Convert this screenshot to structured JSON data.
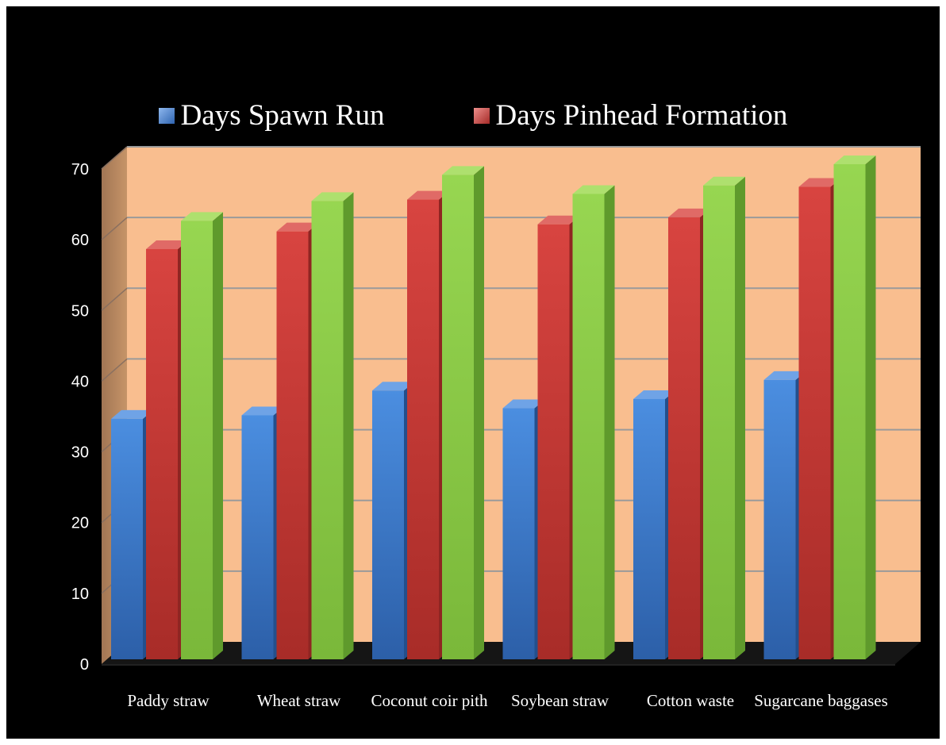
{
  "chart_data": {
    "type": "bar",
    "title": "",
    "xlabel": "",
    "ylabel": "",
    "categories": [
      "Paddy straw",
      "Wheat straw",
      "Coconut coir pith",
      "Soybean straw",
      "Cotton waste",
      "Sugarcane baggases"
    ],
    "series": [
      {
        "name": "Days Spawn Run",
        "values": [
          34,
          34.5,
          38,
          35.5,
          36.8,
          39.5
        ],
        "color": "#3e7ed2"
      },
      {
        "name": "Days Pinhead Formation",
        "values": [
          58,
          60.5,
          65,
          61.5,
          62.5,
          66.8
        ],
        "color": "#cc3a36"
      },
      {
        "name": "",
        "values": [
          62,
          64.8,
          68.5,
          65.8,
          67,
          70
        ],
        "color": "#8fce4a"
      }
    ],
    "yticks": [
      "0",
      "10",
      "20",
      "30",
      "40",
      "50",
      "60",
      "70"
    ],
    "ylim": [
      0,
      70
    ],
    "grid": true,
    "legend_position": "top",
    "background_color": "#f9be8f",
    "page_background": "#000000"
  }
}
